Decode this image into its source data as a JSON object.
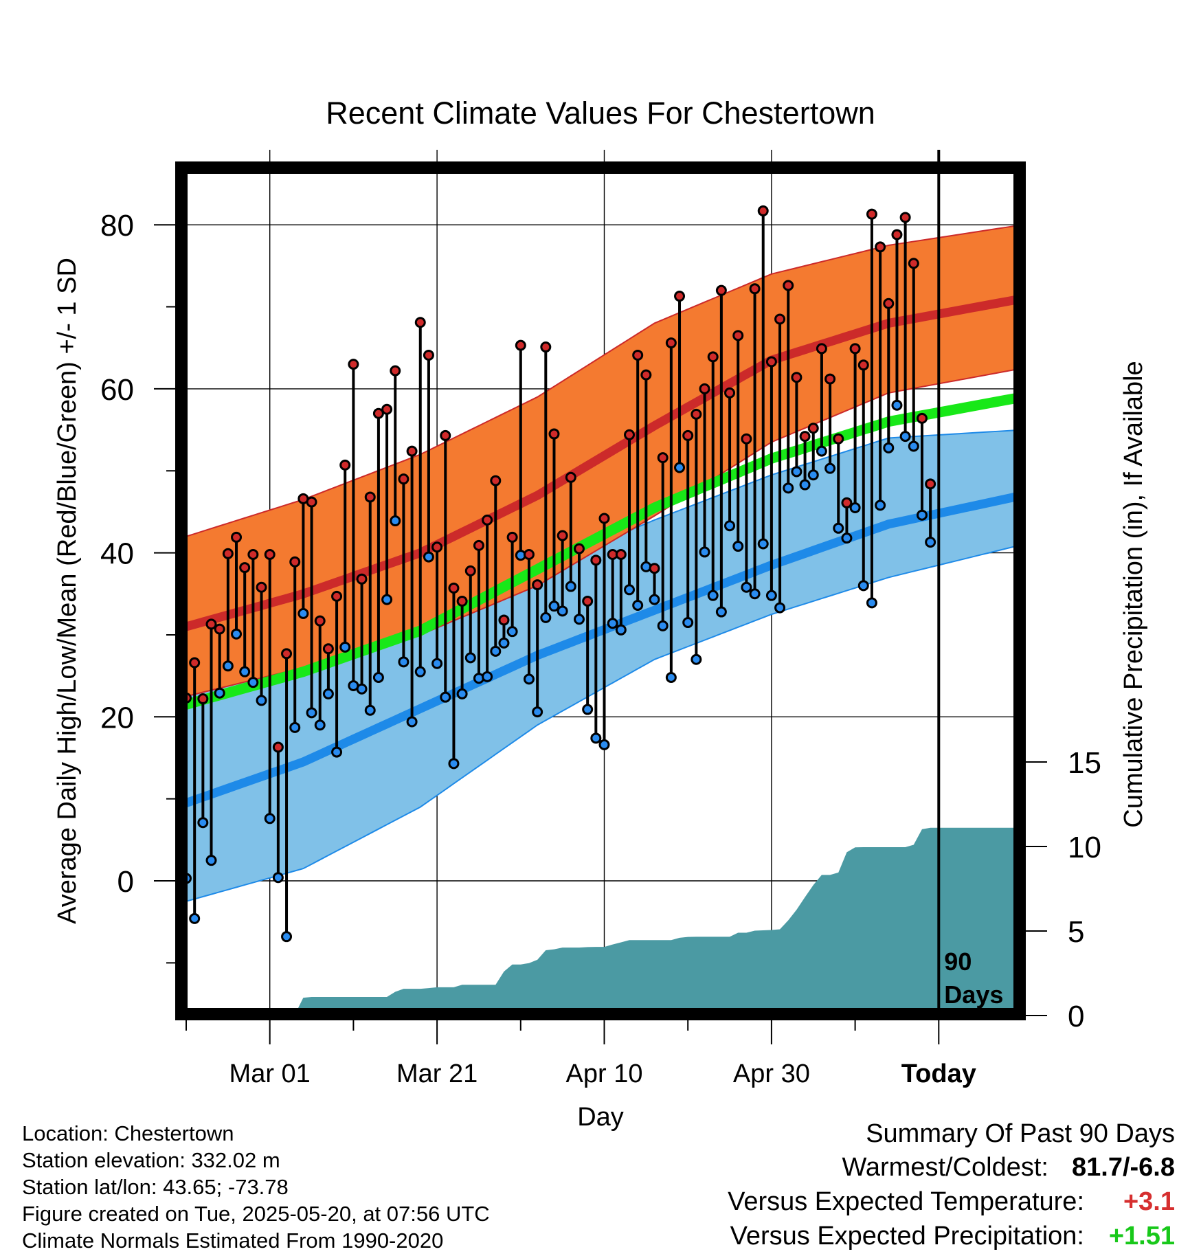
{
  "chart_data": {
    "type": "line",
    "title": "Recent Climate Values For Chestertown",
    "xlabel": "Day",
    "ylabel": "Average Daily High/Low/Mean (Red/Blue/Green) +/- 1 SD",
    "y2label": "Cumulative Precipitation (in), If Available",
    "x_tick_labels": [
      "Mar 01",
      "Mar 21",
      "Apr 10",
      "Apr 30",
      "Today"
    ],
    "y_ticks": [
      "0",
      "20",
      "40",
      "60",
      "80"
    ],
    "y2_ticks": [
      "0",
      "5",
      "10",
      "15"
    ],
    "ylim": [
      -16,
      86
    ],
    "y2lim": [
      0,
      15
    ],
    "today_label": "90\nDays",
    "normals": {
      "high_mean": [
        31.0,
        35.0,
        40.0,
        47.0,
        55.5,
        63.5,
        68.0,
        71.0
      ],
      "high_upper": [
        42.0,
        46.5,
        52.0,
        59.0,
        68.0,
        74.0,
        77.5,
        80.0
      ],
      "high_lower": [
        22.5,
        26.0,
        30.0,
        36.0,
        44.5,
        53.5,
        59.5,
        62.5
      ],
      "mean": [
        21.5,
        25.5,
        30.5,
        38.0,
        45.5,
        51.5,
        56.0,
        59.0
      ],
      "low_mean": [
        9.5,
        14.5,
        21.0,
        27.5,
        33.0,
        38.5,
        43.5,
        47.0
      ],
      "low_upper": [
        23.0,
        27.0,
        32.5,
        38.0,
        44.0,
        49.5,
        54.0,
        55.0
      ],
      "low_lower": [
        -2.5,
        1.5,
        9.0,
        19.0,
        27.0,
        32.5,
        37.0,
        41.0
      ],
      "normal_days": [
        0,
        14,
        28,
        42,
        56,
        70,
        84,
        100
      ]
    },
    "series": [
      {
        "name": "High",
        "values": [
          22.3,
          26.6,
          22.2,
          31.3,
          30.7,
          39.9,
          41.9,
          38.2,
          39.8,
          35.8,
          39.8,
          16.3,
          27.7,
          38.9,
          46.6,
          46.2,
          31.7,
          28.3,
          34.7,
          50.7,
          63.0,
          36.8,
          46.8,
          57.0,
          57.5,
          62.2,
          49.0,
          52.4,
          68.1,
          64.1,
          40.7,
          54.3,
          35.7,
          34.1,
          37.8,
          40.9,
          44.0,
          48.8,
          31.8,
          41.9,
          65.3,
          39.8,
          36.1,
          65.1,
          54.5,
          42.1,
          49.2,
          40.5,
          34.1,
          39.1,
          44.2,
          39.8,
          39.8,
          54.4,
          64.1,
          61.7,
          38.1,
          51.6,
          65.6,
          71.3,
          54.3,
          56.9,
          60.0,
          63.9,
          72.0,
          59.5,
          66.5,
          53.9,
          72.2,
          81.7,
          63.3,
          68.5,
          72.6,
          61.4,
          54.2,
          55.2,
          64.9,
          61.2,
          53.9,
          46.1,
          64.9,
          62.9,
          81.3,
          77.3,
          70.4,
          78.8,
          80.9,
          75.3,
          56.4,
          48.4
        ]
      },
      {
        "name": "Low",
        "values": [
          0.3,
          -4.6,
          7.1,
          2.5,
          22.9,
          26.2,
          30.1,
          25.5,
          24.2,
          22.0,
          7.6,
          0.4,
          -6.8,
          18.7,
          32.6,
          20.5,
          19.0,
          22.8,
          15.7,
          28.5,
          23.8,
          23.4,
          20.8,
          24.8,
          34.3,
          43.9,
          26.7,
          19.4,
          25.5,
          39.5,
          26.5,
          22.4,
          14.3,
          22.8,
          27.2,
          24.7,
          24.9,
          28.0,
          29.0,
          30.4,
          39.7,
          24.6,
          20.6,
          32.1,
          33.5,
          32.9,
          35.9,
          31.9,
          20.9,
          17.4,
          16.6,
          31.4,
          30.6,
          35.5,
          33.6,
          38.3,
          34.3,
          31.1,
          24.8,
          50.4,
          31.5,
          27.0,
          40.1,
          34.8,
          32.8,
          43.3,
          40.8,
          35.8,
          35.0,
          41.1,
          34.8,
          33.3,
          47.9,
          49.9,
          48.3,
          49.5,
          52.4,
          50.3,
          43.0,
          41.8,
          45.5,
          36.0,
          33.9,
          45.8,
          52.8,
          58.0,
          54.2,
          53.0,
          44.6,
          41.3
        ]
      },
      {
        "name": "Cumulative Precipitation",
        "values": [
          0,
          0,
          0,
          0,
          0,
          0,
          0,
          0,
          0,
          0,
          0.03,
          0.04,
          0.05,
          0.05,
          1.05,
          1.1,
          1.1,
          1.1,
          1.1,
          1.1,
          1.1,
          1.1,
          1.1,
          1.1,
          1.1,
          1.4,
          1.58,
          1.58,
          1.58,
          1.62,
          1.67,
          1.67,
          1.67,
          1.82,
          1.82,
          1.82,
          1.82,
          1.82,
          2.6,
          3.02,
          3.02,
          3.1,
          3.3,
          3.86,
          3.92,
          4.02,
          4.02,
          4.02,
          4.05,
          4.06,
          4.06,
          4.2,
          4.33,
          4.46,
          4.46,
          4.46,
          4.46,
          4.46,
          4.46,
          4.6,
          4.65,
          4.66,
          4.66,
          4.66,
          4.66,
          4.66,
          4.9,
          4.9,
          5.02,
          5.04,
          5.06,
          5.1,
          5.63,
          6.26,
          7.0,
          7.72,
          8.32,
          8.32,
          8.46,
          9.66,
          9.95,
          9.96,
          9.96,
          9.96,
          9.96,
          9.96,
          9.96,
          10.1,
          11.02,
          11.11
        ]
      }
    ]
  },
  "info": {
    "location": "Location: Chestertown",
    "elevation": "Station elevation: 332.02 m",
    "latlon": "Station lat/lon: 43.65; -73.78",
    "created": "Figure created on Tue, 2025-05-20, at 07:56 UTC",
    "normals": "Climate Normals Estimated From 1990-2020"
  },
  "summary": {
    "title": "Summary Of Past 90 Days",
    "warmest_label": "Warmest/Coldest:",
    "warmest_value": "81.7/-6.8",
    "temp_label": "Versus Expected Temperature:",
    "temp_value": "+3.1",
    "precip_label": "Versus Expected Precipitation:",
    "precip_value": "+1.51"
  },
  "colors": {
    "high_band": "#f47a30",
    "high_line": "#cc2a2a",
    "low_band": "#80c1e8",
    "low_line": "#1e8ae8",
    "mean_line": "#18e818",
    "precip_fill": "#4b9aa3",
    "temp_positive": "#d62f2f",
    "precip_positive": "#18c81a"
  }
}
